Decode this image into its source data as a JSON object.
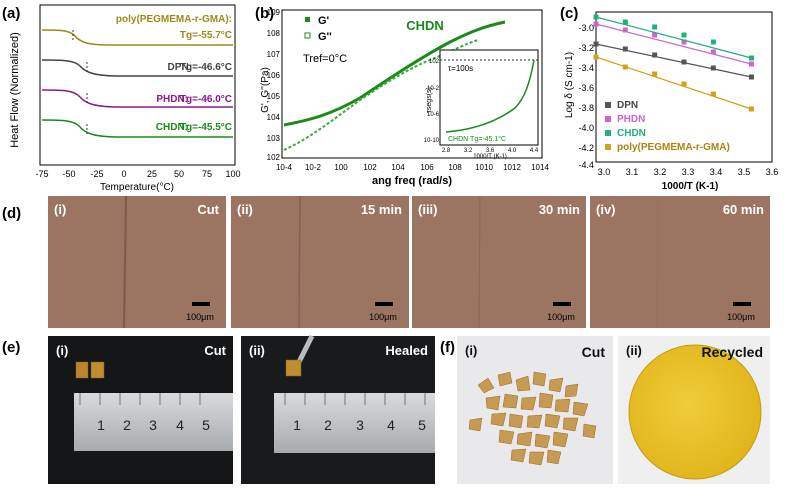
{
  "panels": {
    "a": {
      "label": "(a)",
      "ylabel": "Heat Flow (Normalized)",
      "xlabel": "Temperature(°C)",
      "xticks": [
        "-75",
        "-50",
        "-25",
        "0",
        "25",
        "50",
        "75",
        "100"
      ],
      "curves": [
        {
          "name": "poly(PEGMEMA-r-GMA):",
          "tg": "Tg=-55.7°C",
          "color": "#9a8a1a"
        },
        {
          "name": "DPN:",
          "tg": "Tg=-46.6°C",
          "color": "#444444"
        },
        {
          "name": "PHDN:",
          "tg": "Tg=-46.0°C",
          "color": "#8a1a8a"
        },
        {
          "name": "CHDN:",
          "tg": "Tg=-45.5°C",
          "color": "#1a8a1a"
        }
      ]
    },
    "b": {
      "label": "(b)",
      "ylabel": "G', G''(Pa)",
      "xlabel": "ang freq (rad/s)",
      "title": "CHDN",
      "tref": "Tref=0°C",
      "legend": [
        "G'",
        "G''"
      ],
      "xticks": [
        "10-4",
        "10-2",
        "100",
        "102",
        "104",
        "106",
        "108",
        "1010",
        "1012",
        "1014"
      ],
      "yticks": [
        "109",
        "108",
        "107",
        "106",
        "105",
        "104",
        "103",
        "102"
      ],
      "inset": {
        "ylabel": "τsegs(s)",
        "xlabel": "1000/T (K-1)",
        "annotation": "τ=100s",
        "caption": "CHDN Tg=-45.1°C",
        "xticks": [
          "2.8",
          "3.2",
          "3.6",
          "4.0",
          "4.4"
        ],
        "yticks": [
          "102",
          "10-2",
          "10-6",
          "10-10"
        ]
      }
    },
    "c": {
      "label": "(c)",
      "ylabel": "Log δ (S cm-1)",
      "xlabel": "1000/T (K-1)",
      "xticks": [
        "3.0",
        "3.1",
        "3.2",
        "3.3",
        "3.4",
        "3.5",
        "3.6"
      ],
      "yticks": [
        "-3.0",
        "-3.2",
        "-3.4",
        "-3.6",
        "-3.8",
        "-4.0",
        "-4.2",
        "-4.4"
      ],
      "legend": [
        {
          "name": "DPN",
          "color": "#555555"
        },
        {
          "name": "PHDN",
          "color": "#cc66cc"
        },
        {
          "name": "CHDN",
          "color": "#22b07a"
        },
        {
          "name": "poly(PEGMEMA-r-GMA)",
          "color": "#d4a017"
        }
      ]
    },
    "d": {
      "label": "(d)",
      "images": [
        {
          "index": "(i)",
          "caption": "Cut"
        },
        {
          "index": "(ii)",
          "caption": "15 min"
        },
        {
          "index": "(iii)",
          "caption": "30 min"
        },
        {
          "index": "(iv)",
          "caption": "60 min"
        }
      ],
      "scalebar": "100μm"
    },
    "e": {
      "label": "(e)",
      "images": [
        {
          "index": "(i)",
          "caption": "Cut"
        },
        {
          "index": "(ii)",
          "caption": "Healed"
        }
      ],
      "ruler_numbers": [
        "1",
        "2",
        "3",
        "4",
        "5"
      ]
    },
    "f": {
      "label": "(f)",
      "images": [
        {
          "index": "(i)",
          "caption": "Cut"
        },
        {
          "index": "(ii)",
          "caption": "Recycled"
        }
      ]
    }
  },
  "chart_data": [
    {
      "type": "line",
      "title": "",
      "xlabel": "Temperature(°C)",
      "ylabel": "Heat Flow (Normalized)",
      "xlim": [
        -75,
        100
      ],
      "series": [
        {
          "name": "poly(PEGMEMA-r-GMA)",
          "tg": -55.7
        },
        {
          "name": "DPN",
          "tg": -46.6
        },
        {
          "name": "PHDN",
          "tg": -46.0
        },
        {
          "name": "CHDN",
          "tg": -45.5
        }
      ]
    },
    {
      "type": "scatter",
      "title": "CHDN",
      "xlabel": "1000/T (K-1)",
      "ylabel": "Log δ (S cm-1)",
      "xlim": [
        3.0,
        3.6
      ],
      "ylim": [
        -4.4,
        -2.9
      ],
      "x": [
        3.0,
        3.1,
        3.2,
        3.3,
        3.4,
        3.53
      ],
      "series": [
        {
          "name": "DPN",
          "values": [
            -3.22,
            -3.27,
            -3.33,
            -3.4,
            -3.46,
            -3.55
          ]
        },
        {
          "name": "PHDN",
          "values": [
            -3.02,
            -3.08,
            -3.13,
            -3.2,
            -3.3,
            -3.42
          ]
        },
        {
          "name": "CHDN",
          "values": [
            -2.95,
            -3.0,
            -3.05,
            -3.13,
            -3.2,
            -3.36
          ]
        },
        {
          "name": "poly(PEGMEMA-r-GMA)",
          "values": [
            -3.35,
            -3.45,
            -3.52,
            -3.62,
            -3.72,
            -3.87
          ]
        }
      ]
    }
  ]
}
